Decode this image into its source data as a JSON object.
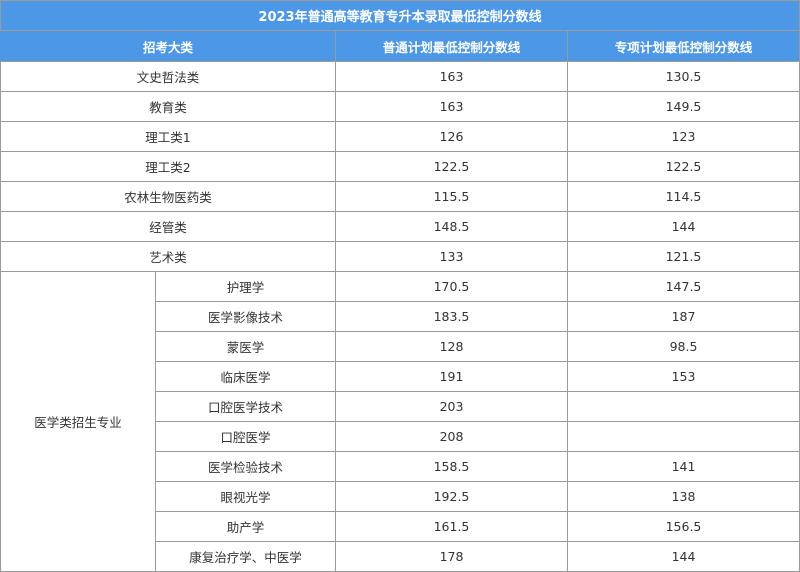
{
  "table": {
    "title": "2023年普通高等教育专升本录取最低控制分数线",
    "headers": [
      "招考大类",
      "普通计划最低控制分数线",
      "专项计划最低控制分数线"
    ],
    "rows": [
      {
        "category": "文史哲法类",
        "general": "163",
        "special": "130.5"
      },
      {
        "category": "教育类",
        "general": "163",
        "special": "149.5"
      },
      {
        "category": "理工类1",
        "general": "126",
        "special": "123"
      },
      {
        "category": "理工类2",
        "general": "122.5",
        "special": "122.5"
      },
      {
        "category": "农林生物医药类",
        "general": "115.5",
        "special": "114.5"
      },
      {
        "category": "经管类",
        "general": "148.5",
        "special": "144"
      },
      {
        "category": "艺术类",
        "general": "133",
        "special": "121.5"
      }
    ],
    "medical": {
      "group_label": "医学类招生专业",
      "rows": [
        {
          "major": "护理学",
          "general": "170.5",
          "special": "147.5"
        },
        {
          "major": "医学影像技术",
          "general": "183.5",
          "special": "187"
        },
        {
          "major": "蒙医学",
          "general": "128",
          "special": "98.5"
        },
        {
          "major": "临床医学",
          "general": "191",
          "special": "153"
        },
        {
          "major": "口腔医学技术",
          "general": "203",
          "special": ""
        },
        {
          "major": "口腔医学",
          "general": "208",
          "special": ""
        },
        {
          "major": "医学检验技术",
          "general": "158.5",
          "special": "141"
        },
        {
          "major": "眼视光学",
          "general": "192.5",
          "special": "138"
        },
        {
          "major": "助产学",
          "general": "161.5",
          "special": "156.5"
        },
        {
          "major": "康复治疗学、中医学",
          "general": "178",
          "special": "144"
        }
      ]
    }
  }
}
